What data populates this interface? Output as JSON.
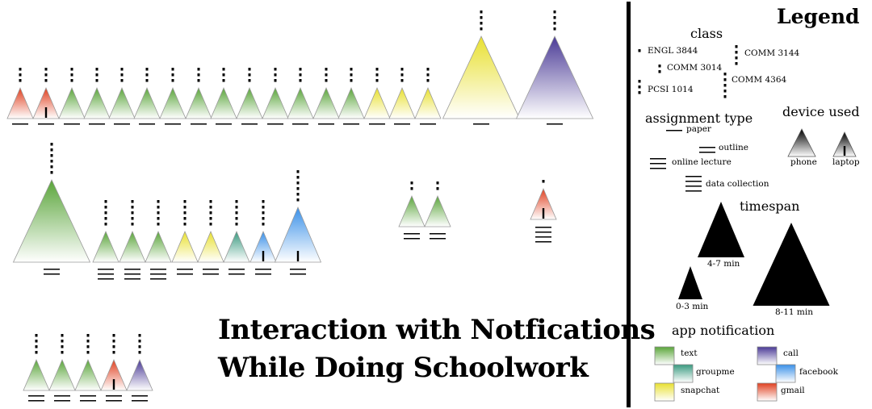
{
  "title": {
    "line1": "Interaction with Notfications",
    "line2": "While Doing Schoolwork"
  },
  "colors": {
    "text": "#5aa53a",
    "groupme": "#3a9a80",
    "snapchat": "#e8e030",
    "call": "#4a3a96",
    "facebook": "#3a90e8",
    "gmail": "#e04020"
  },
  "glyph_data": {
    "rows": [
      {
        "items": [
          {
            "app": "gmail",
            "time": "small",
            "device": "phone",
            "class_dots": 3,
            "lines": 1
          },
          {
            "app": "gmail",
            "time": "small",
            "device": "laptop",
            "class_dots": 3,
            "lines": 1
          },
          {
            "app": "text",
            "time": "small",
            "device": "phone",
            "class_dots": 3,
            "lines": 1
          },
          {
            "app": "text",
            "time": "small",
            "device": "phone",
            "class_dots": 3,
            "lines": 1
          },
          {
            "app": "text",
            "time": "small",
            "device": "phone",
            "class_dots": 3,
            "lines": 1
          },
          {
            "app": "text",
            "time": "small",
            "device": "phone",
            "class_dots": 3,
            "lines": 1
          },
          {
            "app": "text",
            "time": "small",
            "device": "phone",
            "class_dots": 3,
            "lines": 1
          },
          {
            "app": "text",
            "time": "small",
            "device": "phone",
            "class_dots": 3,
            "lines": 1
          },
          {
            "app": "text",
            "time": "small",
            "device": "phone",
            "class_dots": 3,
            "lines": 1
          },
          {
            "app": "text",
            "time": "small",
            "device": "phone",
            "class_dots": 3,
            "lines": 1
          },
          {
            "app": "text",
            "time": "small",
            "device": "phone",
            "class_dots": 3,
            "lines": 1
          },
          {
            "app": "text",
            "time": "small",
            "device": "phone",
            "class_dots": 3,
            "lines": 1
          },
          {
            "app": "text",
            "time": "small",
            "device": "phone",
            "class_dots": 3,
            "lines": 1
          },
          {
            "app": "text",
            "time": "small",
            "device": "phone",
            "class_dots": 3,
            "lines": 1
          },
          {
            "app": "snapchat",
            "time": "small",
            "device": "phone",
            "class_dots": 3,
            "lines": 1
          },
          {
            "app": "snapchat",
            "time": "small",
            "device": "phone",
            "class_dots": 3,
            "lines": 1
          },
          {
            "app": "snapchat",
            "time": "small",
            "device": "phone",
            "class_dots": 3,
            "lines": 1
          },
          {
            "app": "snapchat",
            "time": "large",
            "device": "phone",
            "class_dots": 4,
            "lines": 1
          },
          {
            "app": "call",
            "time": "large",
            "device": "phone",
            "class_dots": 4,
            "lines": 1
          }
        ]
      },
      {
        "items": [
          {
            "app": "text",
            "time": "large",
            "device": "phone",
            "class_dots": 6,
            "lines": 2
          },
          {
            "app": "text",
            "time": "small",
            "device": "phone",
            "class_dots": 5,
            "lines": 3
          },
          {
            "app": "text",
            "time": "small",
            "device": "phone",
            "class_dots": 5,
            "lines": 3
          },
          {
            "app": "text",
            "time": "small",
            "device": "phone",
            "class_dots": 5,
            "lines": 3
          },
          {
            "app": "snapchat",
            "time": "small",
            "device": "phone",
            "class_dots": 5,
            "lines": 2
          },
          {
            "app": "snapchat",
            "time": "small",
            "device": "phone",
            "class_dots": 5,
            "lines": 2
          },
          {
            "app": "groupme",
            "time": "small",
            "device": "phone",
            "class_dots": 5,
            "lines": 2
          },
          {
            "app": "facebook",
            "time": "small",
            "device": "laptop",
            "class_dots": 5,
            "lines": 2
          },
          {
            "app": "facebook",
            "time": "medium",
            "device": "laptop",
            "class_dots": 6,
            "lines": 2
          }
        ]
      },
      {
        "items": [
          {
            "app": "text",
            "time": "small",
            "device": "phone",
            "class_dots": 2,
            "lines": 2
          },
          {
            "app": "text",
            "time": "small",
            "device": "phone",
            "class_dots": 2,
            "lines": 2
          }
        ]
      },
      {
        "items": [
          {
            "app": "gmail",
            "time": "small",
            "device": "laptop",
            "class_dots": 1,
            "lines": 4
          }
        ]
      },
      {
        "items": [
          {
            "app": "text",
            "time": "small",
            "device": "phone",
            "class_dots": 4,
            "lines": 2
          },
          {
            "app": "text",
            "time": "small",
            "device": "phone",
            "class_dots": 4,
            "lines": 2
          },
          {
            "app": "text",
            "time": "small",
            "device": "phone",
            "class_dots": 4,
            "lines": 2
          },
          {
            "app": "gmail",
            "time": "small",
            "device": "laptop",
            "class_dots": 4,
            "lines": 2
          },
          {
            "app": "call",
            "time": "small",
            "device": "phone",
            "class_dots": 4,
            "lines": 2
          }
        ]
      }
    ]
  },
  "legend": {
    "title": "Legend",
    "class": {
      "heading": "class",
      "items": [
        {
          "label": "ENGL 3844",
          "dots": 1
        },
        {
          "label": "COMM 3014",
          "dots": 2
        },
        {
          "label": "PCSI 1014",
          "dots": 3
        },
        {
          "label": "COMM 3144",
          "dots": 4
        },
        {
          "label": "COMM 4364",
          "dots": 5
        }
      ]
    },
    "assignment_type": {
      "heading": "assignment type",
      "items": [
        {
          "label": "paper",
          "lines": 1
        },
        {
          "label": "outline",
          "lines": 2
        },
        {
          "label": "online lecture",
          "lines": 3
        },
        {
          "label": "data collection",
          "lines": 4
        }
      ]
    },
    "device_used": {
      "heading": "device used",
      "items": [
        {
          "label": "phone",
          "device": "phone"
        },
        {
          "label": "laptop",
          "device": "laptop"
        }
      ]
    },
    "timespan": {
      "heading": "timespan",
      "items": [
        {
          "label": "0-3 min",
          "time": "small"
        },
        {
          "label": "4-7 min",
          "time": "medium"
        },
        {
          "label": "8-11 min",
          "time": "large"
        }
      ]
    },
    "app_notification": {
      "heading": "app notification",
      "items": [
        {
          "label": "text",
          "app": "text"
        },
        {
          "label": "groupme",
          "app": "groupme"
        },
        {
          "label": "snapchat",
          "app": "snapchat"
        },
        {
          "label": "call",
          "app": "call"
        },
        {
          "label": "facebook",
          "app": "facebook"
        },
        {
          "label": "gmail",
          "app": "gmail"
        }
      ]
    }
  }
}
